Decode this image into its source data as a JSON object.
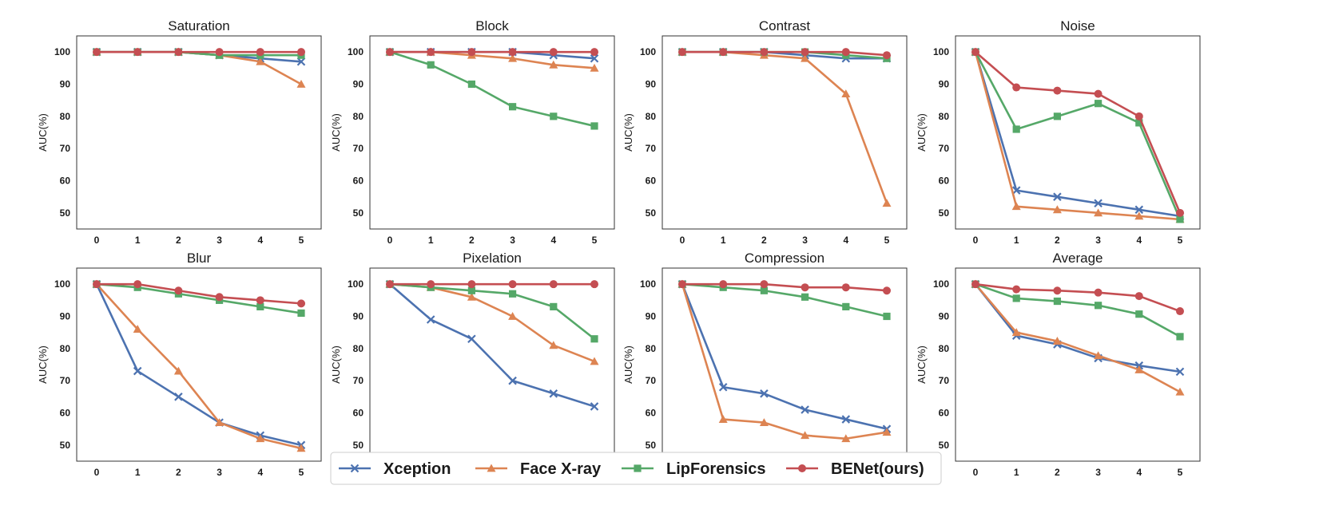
{
  "chart_data": {
    "type": "line",
    "x": [
      0,
      1,
      2,
      3,
      4,
      5
    ],
    "ylabel": "AUC(%)",
    "ylim": [
      45,
      105
    ],
    "yticks": [
      50,
      60,
      70,
      80,
      90,
      100
    ],
    "grid": false,
    "legend": {
      "position": "bottom-center",
      "entries": [
        {
          "name": "Xception",
          "color": "#4c72b0",
          "marker": "x"
        },
        {
          "name": "Face X-ray",
          "color": "#dd8452",
          "marker": "triangle"
        },
        {
          "name": "LipForensics",
          "color": "#55a868",
          "marker": "square"
        },
        {
          "name": "BENet(ours)",
          "color": "#c44e52",
          "marker": "circle"
        }
      ]
    },
    "panels": [
      {
        "title": "Saturation",
        "series": [
          {
            "name": "Xception",
            "values": [
              100,
              100,
              100,
              99,
              98,
              97
            ]
          },
          {
            "name": "Face X-ray",
            "values": [
              100,
              100,
              100,
              99,
              97,
              90
            ]
          },
          {
            "name": "LipForensics",
            "values": [
              100,
              100,
              100,
              99,
              99,
              99
            ]
          },
          {
            "name": "BENet(ours)",
            "values": [
              100,
              100,
              100,
              100,
              100,
              100
            ]
          }
        ]
      },
      {
        "title": "Block",
        "series": [
          {
            "name": "Xception",
            "values": [
              100,
              100,
              100,
              100,
              99,
              98
            ]
          },
          {
            "name": "Face X-ray",
            "values": [
              100,
              100,
              99,
              98,
              96,
              95
            ]
          },
          {
            "name": "LipForensics",
            "values": [
              100,
              96,
              90,
              83,
              80,
              77
            ]
          },
          {
            "name": "BENet(ours)",
            "values": [
              100,
              100,
              100,
              100,
              100,
              100
            ]
          }
        ]
      },
      {
        "title": "Contrast",
        "series": [
          {
            "name": "Xception",
            "values": [
              100,
              100,
              100,
              99,
              98,
              98
            ]
          },
          {
            "name": "Face X-ray",
            "values": [
              100,
              100,
              99,
              98,
              87,
              53
            ]
          },
          {
            "name": "LipForensics",
            "values": [
              100,
              100,
              100,
              100,
              99,
              98
            ]
          },
          {
            "name": "BENet(ours)",
            "values": [
              100,
              100,
              100,
              100,
              100,
              99
            ]
          }
        ]
      },
      {
        "title": "Noise",
        "series": [
          {
            "name": "Xception",
            "values": [
              100,
              57,
              55,
              53,
              51,
              49
            ]
          },
          {
            "name": "Face X-ray",
            "values": [
              100,
              52,
              51,
              50,
              49,
              48
            ]
          },
          {
            "name": "LipForensics",
            "values": [
              100,
              76,
              80,
              84,
              78,
              48
            ]
          },
          {
            "name": "BENet(ours)",
            "values": [
              100,
              89,
              88,
              87,
              80,
              50
            ]
          }
        ]
      },
      {
        "title": "Blur",
        "series": [
          {
            "name": "Xception",
            "values": [
              100,
              73,
              65,
              57,
              53,
              50
            ]
          },
          {
            "name": "Face X-ray",
            "values": [
              100,
              86,
              73,
              57,
              52,
              49
            ]
          },
          {
            "name": "LipForensics",
            "values": [
              100,
              99,
              97,
              95,
              93,
              91
            ]
          },
          {
            "name": "BENet(ours)",
            "values": [
              100,
              100,
              98,
              96,
              95,
              94
            ]
          }
        ]
      },
      {
        "title": "Pixelation",
        "series": [
          {
            "name": "Xception",
            "values": [
              100,
              89,
              83,
              70,
              66,
              62
            ]
          },
          {
            "name": "Face X-ray",
            "values": [
              100,
              99,
              96,
              90,
              81,
              76
            ]
          },
          {
            "name": "LipForensics",
            "values": [
              100,
              99,
              98,
              97,
              93,
              83
            ]
          },
          {
            "name": "BENet(ours)",
            "values": [
              100,
              100,
              100,
              100,
              100,
              100
            ]
          }
        ]
      },
      {
        "title": "Compression",
        "series": [
          {
            "name": "Xception",
            "values": [
              100,
              68,
              66,
              61,
              58,
              55
            ]
          },
          {
            "name": "Face X-ray",
            "values": [
              100,
              58,
              57,
              53,
              52,
              54
            ]
          },
          {
            "name": "LipForensics",
            "values": [
              100,
              99,
              98,
              96,
              93,
              90
            ]
          },
          {
            "name": "BENet(ours)",
            "values": [
              100,
              100,
              100,
              99,
              99,
              98
            ]
          }
        ]
      },
      {
        "title": "Average",
        "series": [
          {
            "name": "Xception",
            "values": [
              100,
              84,
              81.3,
              77,
              74.7,
              72.8
            ]
          },
          {
            "name": "Face X-ray",
            "values": [
              100,
              85,
              82.3,
              77.8,
              73.4,
              66.5
            ]
          },
          {
            "name": "LipForensics",
            "values": [
              100,
              95.6,
              94.7,
              93.4,
              90.7,
              83.7
            ]
          },
          {
            "name": "BENet(ours)",
            "values": [
              100,
              98.4,
              98,
              97.4,
              96.3,
              91.6
            ]
          }
        ]
      }
    ]
  }
}
